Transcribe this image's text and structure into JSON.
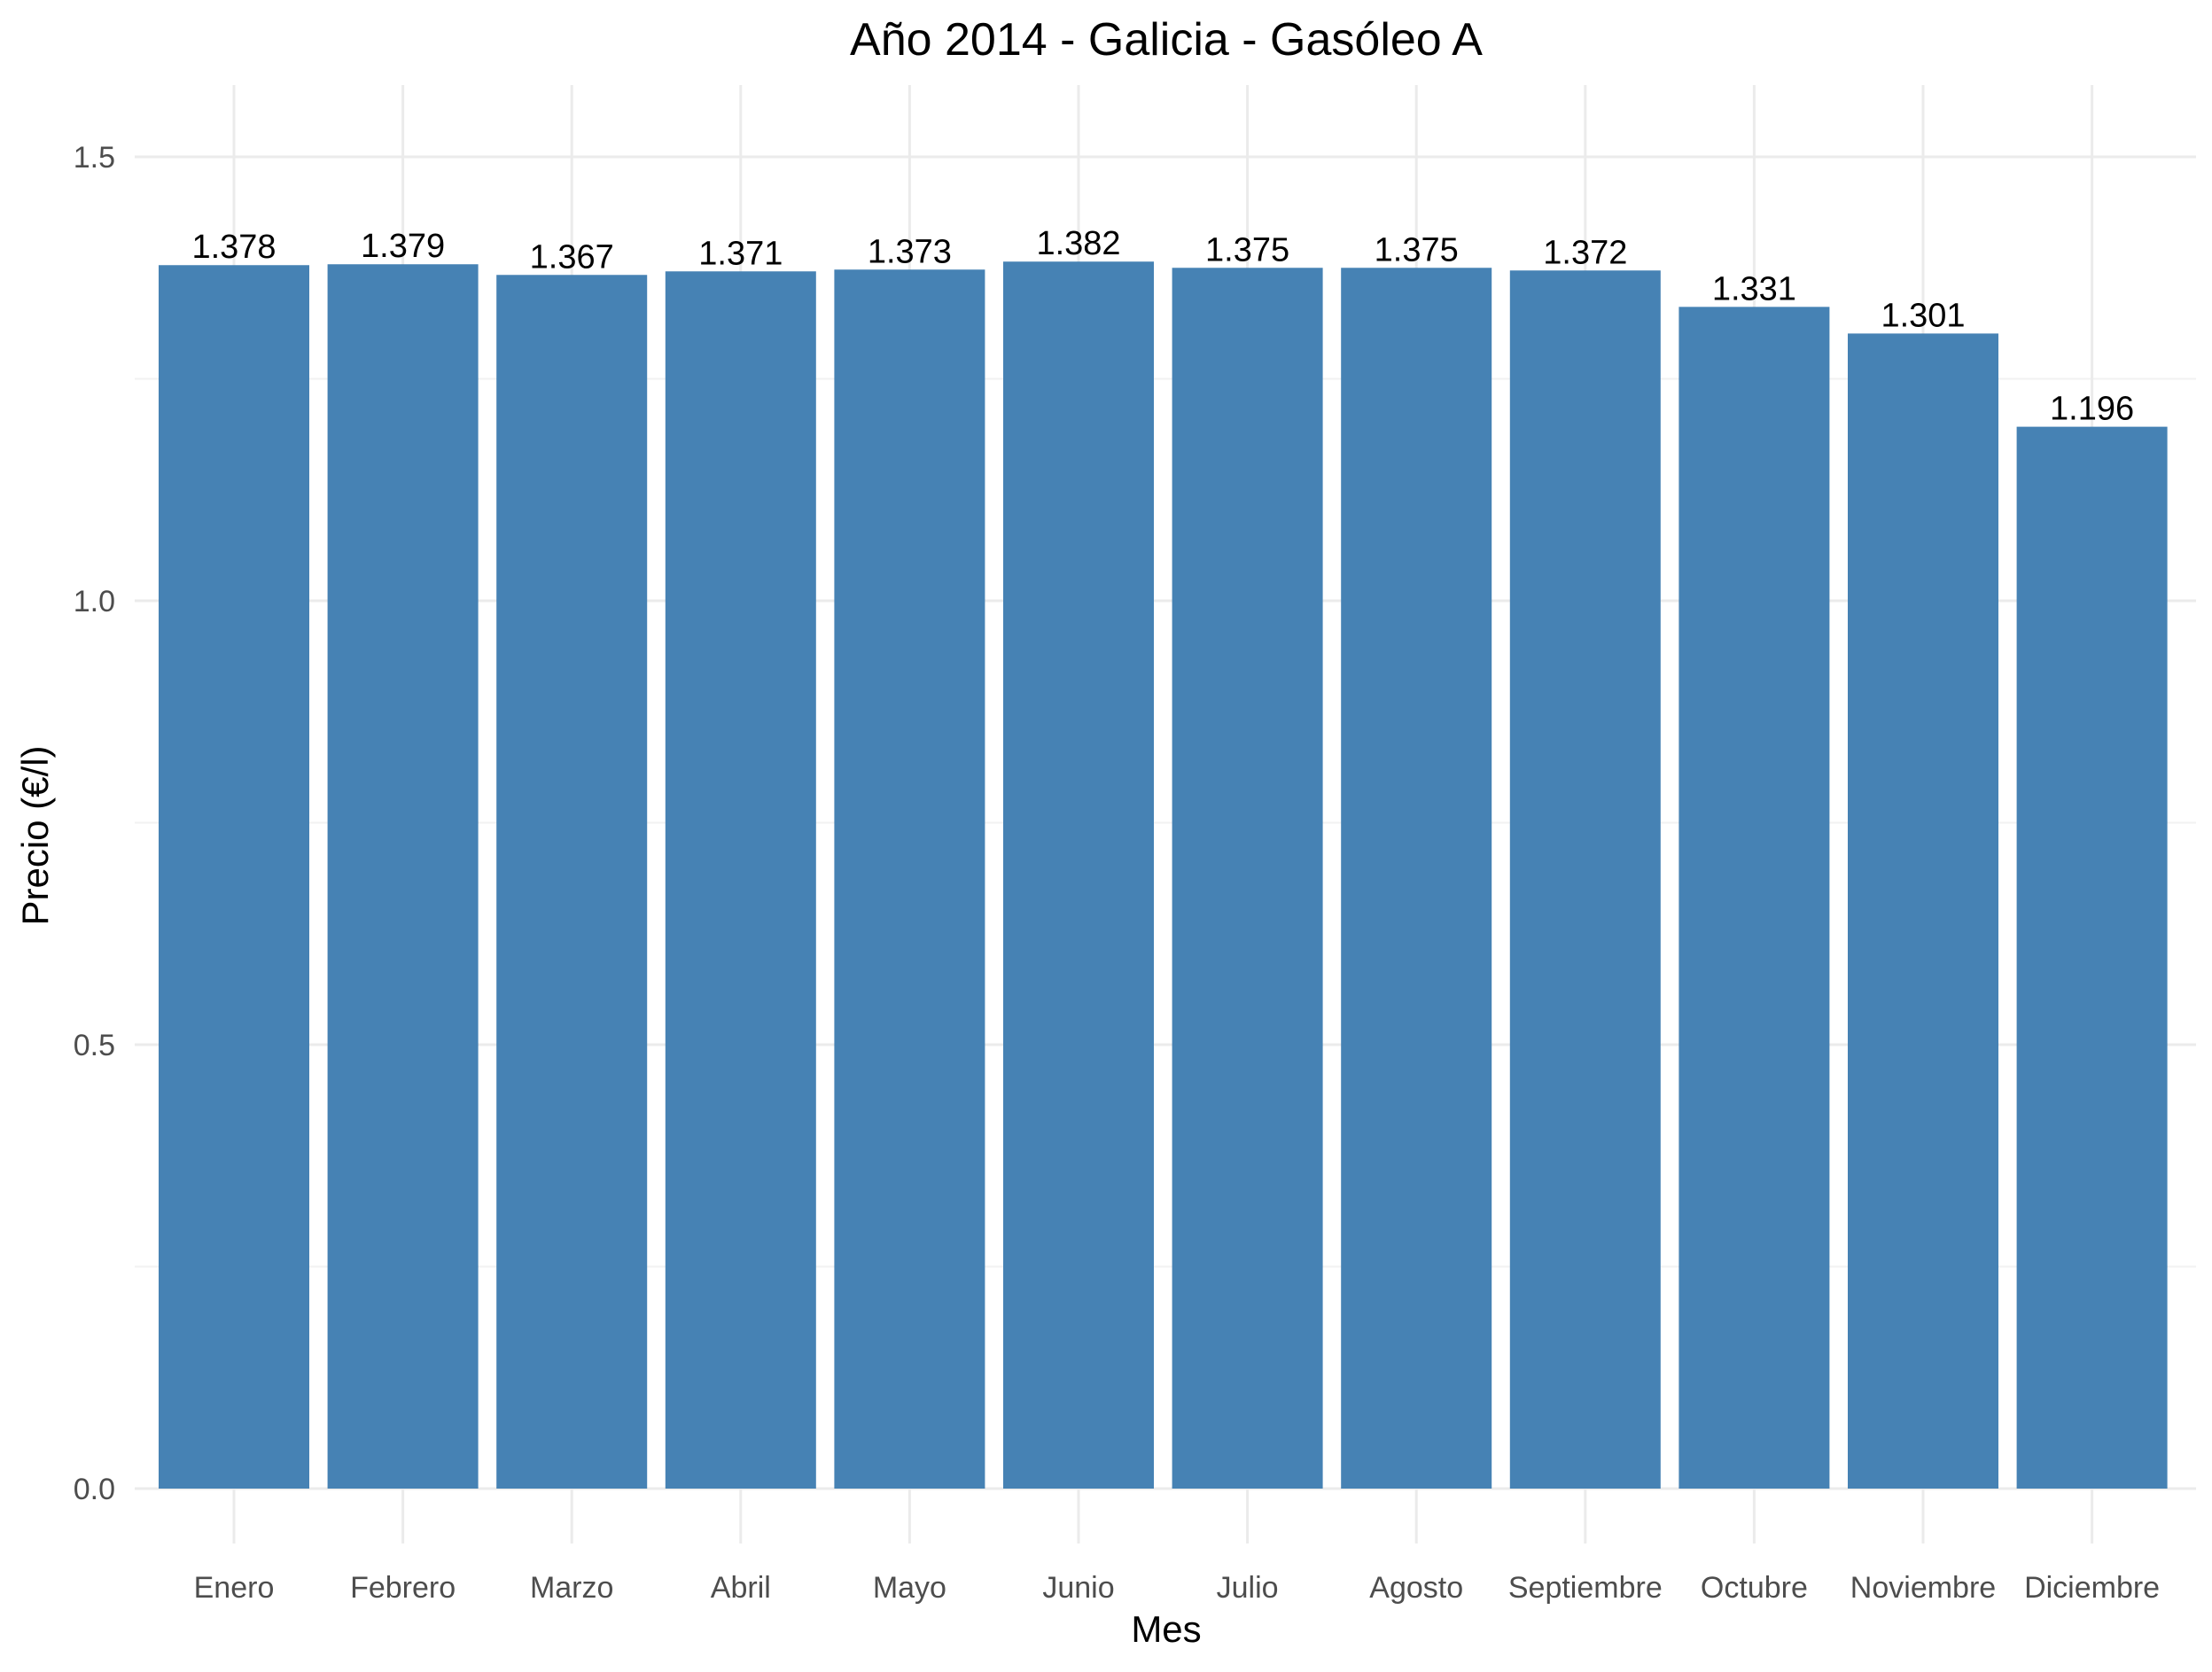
{
  "chart_data": {
    "type": "bar",
    "title": "Año 2014 - Galicia - Gasóleo A",
    "xlabel": "Mes",
    "ylabel": "Precio (€/l)",
    "ylim": [
      0,
      1.6
    ],
    "yticks": [
      0.0,
      0.5,
      1.0,
      1.5
    ],
    "ytick_labels": [
      "0.0",
      "0.5",
      "1.0",
      "1.5"
    ],
    "grid": true,
    "legend": "none",
    "bar_color": "#4682B4",
    "categories": [
      "Enero",
      "Febrero",
      "Marzo",
      "Abril",
      "Mayo",
      "Junio",
      "Julio",
      "Agosto",
      "Septiembre",
      "Octubre",
      "Noviembre",
      "Diciembre"
    ],
    "values": [
      1.378,
      1.379,
      1.367,
      1.371,
      1.373,
      1.382,
      1.375,
      1.375,
      1.372,
      1.331,
      1.301,
      1.196
    ],
    "value_labels": [
      "1.378",
      "1.379",
      "1.367",
      "1.371",
      "1.373",
      "1.382",
      "1.375",
      "1.375",
      "1.372",
      "1.331",
      "1.301",
      "1.196"
    ]
  }
}
